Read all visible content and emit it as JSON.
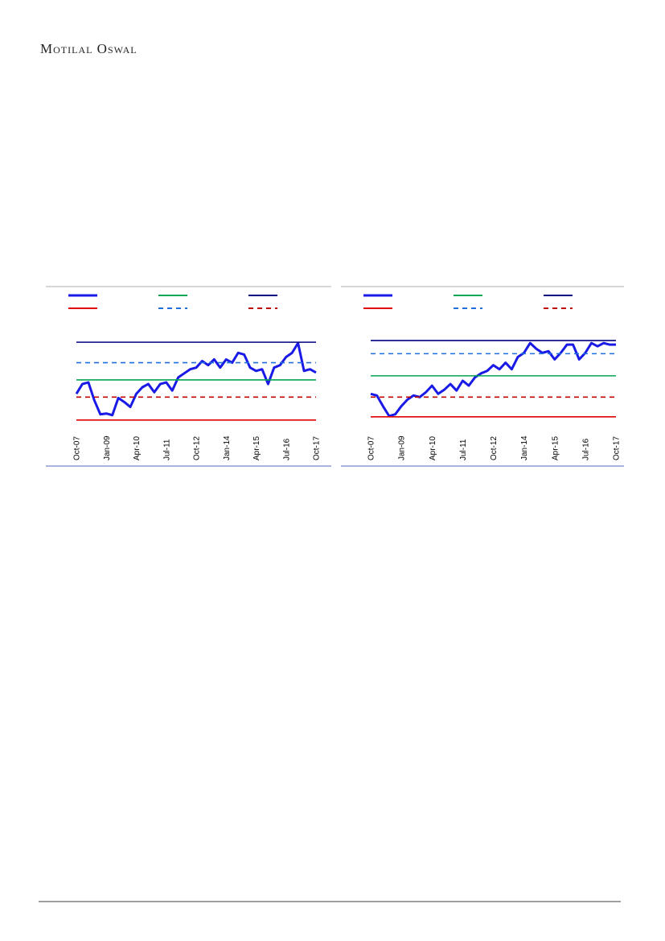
{
  "header": {
    "brand": "Motilal Oswal"
  },
  "chart_data": [
    {
      "type": "line",
      "categories": [
        "Oct-07",
        null,
        null,
        null,
        null,
        "Jan-09",
        null,
        null,
        null,
        null,
        "Apr-10",
        null,
        null,
        null,
        null,
        "Jul-11",
        null,
        null,
        null,
        null,
        "Oct-12",
        null,
        null,
        null,
        null,
        "Jan-14",
        null,
        null,
        null,
        null,
        "Apr-15",
        null,
        null,
        null,
        null,
        "Jul-16",
        null,
        null,
        null,
        null,
        "Oct-17"
      ],
      "ylim": [
        0,
        110
      ],
      "legend": true,
      "series": [
        {
          "color": "#1a1ae6",
          "width": 3,
          "dash": false,
          "values": [
            40,
            52,
            54,
            32,
            15,
            16,
            14,
            35,
            30,
            24,
            40,
            48,
            52,
            42,
            52,
            54,
            44,
            60,
            65,
            70,
            72,
            80,
            75,
            82,
            72,
            82,
            78,
            90,
            88,
            72,
            68,
            70,
            52,
            72,
            75,
            85,
            90,
            102,
            68,
            70,
            66
          ]
        },
        {
          "color": "#00a651",
          "width": 1.6,
          "dash": false,
          "value": 57
        },
        {
          "color": "#000080",
          "width": 1.6,
          "dash": false,
          "value": 103
        },
        {
          "color": "#e00000",
          "width": 1.6,
          "dash": false,
          "value": 8
        },
        {
          "color": "#1f6fdf",
          "width": 1.6,
          "dash": true,
          "value": 78
        },
        {
          "color": "#c00000",
          "width": 1.6,
          "dash": true,
          "value": 36
        }
      ]
    },
    {
      "type": "line",
      "categories": [
        "Oct-07",
        null,
        null,
        null,
        null,
        "Jan-09",
        null,
        null,
        null,
        null,
        "Apr-10",
        null,
        null,
        null,
        null,
        "Jul-11",
        null,
        null,
        null,
        null,
        "Oct-12",
        null,
        null,
        null,
        null,
        "Jan-14",
        null,
        null,
        null,
        null,
        "Apr-15",
        null,
        null,
        null,
        null,
        "Jul-16",
        null,
        null,
        null,
        null,
        "Oct-17"
      ],
      "ylim": [
        0,
        110
      ],
      "legend": true,
      "series": [
        {
          "color": "#1a1ae6",
          "width": 3,
          "dash": false,
          "values": [
            40,
            38,
            25,
            13,
            15,
            25,
            33,
            38,
            36,
            42,
            50,
            40,
            45,
            52,
            44,
            56,
            50,
            60,
            65,
            68,
            75,
            70,
            78,
            70,
            85,
            90,
            102,
            95,
            90,
            92,
            82,
            90,
            100,
            100,
            82,
            90,
            102,
            98,
            102,
            100,
            100
          ]
        },
        {
          "color": "#00a651",
          "width": 1.6,
          "dash": false,
          "value": 62
        },
        {
          "color": "#000080",
          "width": 1.6,
          "dash": false,
          "value": 105
        },
        {
          "color": "#e00000",
          "width": 1.6,
          "dash": false,
          "value": 12
        },
        {
          "color": "#1f6fdf",
          "width": 1.6,
          "dash": true,
          "value": 89
        },
        {
          "color": "#c00000",
          "width": 1.6,
          "dash": true,
          "value": 36
        }
      ]
    }
  ]
}
